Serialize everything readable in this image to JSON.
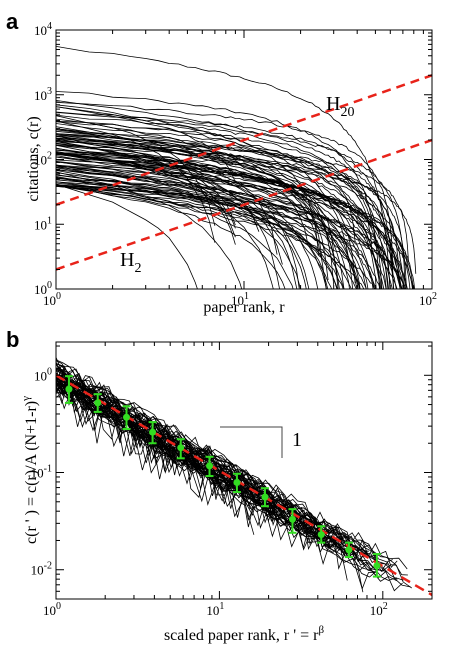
{
  "chart_data": [
    {
      "panel": "a",
      "type": "line",
      "xlabel": "paper rank, r",
      "ylabel": "citations, c(r)",
      "xscale": "log",
      "yscale": "log",
      "xlim": [
        1,
        100
      ],
      "ylim": [
        1,
        10000
      ],
      "x_ticks": [
        1,
        10,
        100
      ],
      "y_ticks": [
        1,
        10,
        100,
        1000,
        10000
      ],
      "x_tick_labels": [
        {
          "base": "10",
          "exp": "0"
        },
        {
          "base": "10",
          "exp": "1"
        },
        {
          "base": "10",
          "exp": "2"
        }
      ],
      "y_tick_labels": [
        {
          "base": "10",
          "exp": "0"
        },
        {
          "base": "10",
          "exp": "1"
        },
        {
          "base": "10",
          "exp": "2"
        },
        {
          "base": "10",
          "exp": "3"
        },
        {
          "base": "10",
          "exp": "4"
        }
      ],
      "grid": false,
      "line_color": "#000000",
      "reference_color": "#e8231a",
      "curve_count": 100,
      "initial_citation_range": [
        40,
        5500
      ],
      "reference_lines": [
        {
          "label_base": "H",
          "label_sub": "20",
          "x": [
            1,
            100
          ],
          "y": [
            20,
            2000
          ]
        },
        {
          "label_base": "H",
          "label_sub": "2",
          "x": [
            1,
            100
          ],
          "y": [
            2,
            200
          ]
        }
      ]
    },
    {
      "panel": "b",
      "type": "line",
      "xlabel": "scaled paper rank, r ' = r",
      "xlabel_exp": "β",
      "ylabel": "c(r ' ) = c(r)/A (N+1-r)",
      "ylabel_exp": "γ",
      "xscale": "log",
      "yscale": "log",
      "xlim": [
        1,
        200
      ],
      "ylim": [
        0.005,
        2.2
      ],
      "x_ticks": [
        1,
        10,
        100
      ],
      "y_ticks": [
        0.01,
        0.1,
        1
      ],
      "x_tick_labels": [
        {
          "base": "10",
          "exp": "0"
        },
        {
          "base": "10",
          "exp": "1"
        },
        {
          "base": "10",
          "exp": "2"
        }
      ],
      "y_tick_labels": [
        {
          "base": "10",
          "exp": "-2"
        },
        {
          "base": "10",
          "exp": "-1"
        },
        {
          "base": "10",
          "exp": "0"
        }
      ],
      "grid": false,
      "line_color": "#000000",
      "fit_color": "#e8231a",
      "marker_color": "#33dd22",
      "curve_count": 60,
      "fit": {
        "x": [
          1,
          200
        ],
        "y": [
          1.0,
          0.0055
        ]
      },
      "slope_annotation": "1",
      "binned_means": {
        "x": [
          1.2,
          1.8,
          2.7,
          3.9,
          5.8,
          8.7,
          12.8,
          19,
          28,
          42,
          62,
          92
        ],
        "y": [
          0.72,
          0.52,
          0.37,
          0.26,
          0.18,
          0.117,
          0.079,
          0.056,
          0.033,
          0.023,
          0.016,
          0.011
        ],
        "err_low": [
          0.52,
          0.42,
          0.28,
          0.2,
          0.14,
          0.092,
          0.063,
          0.045,
          0.024,
          0.019,
          0.0135,
          0.0085
        ],
        "err_high": [
          0.98,
          0.64,
          0.48,
          0.33,
          0.22,
          0.145,
          0.097,
          0.069,
          0.042,
          0.028,
          0.019,
          0.0145
        ]
      }
    }
  ]
}
